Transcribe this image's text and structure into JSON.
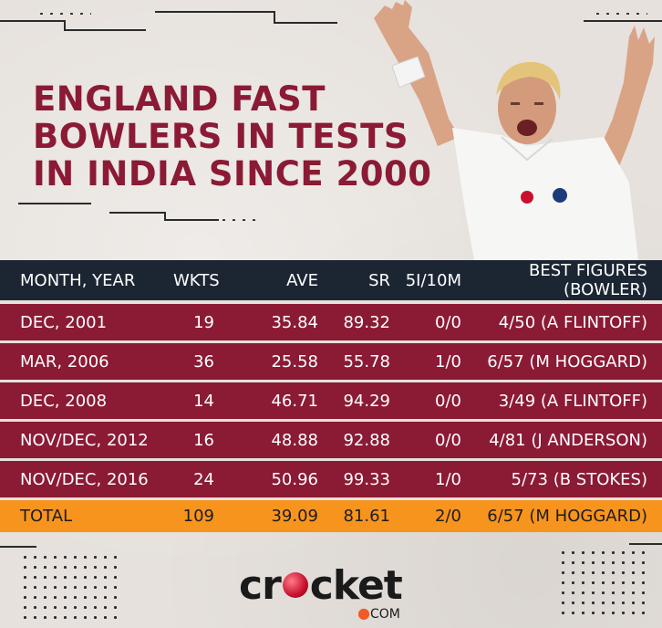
{
  "title": {
    "line1": "ENGLAND FAST",
    "line2": "BOWLERS IN TESTS",
    "line3": "IN INDIA SINCE 2000"
  },
  "table": {
    "headers": [
      "MONTH, YEAR",
      "WKTS",
      "AVE",
      "SR",
      "5I/10M",
      "BEST FIGURES (BOWLER)"
    ],
    "rows": [
      [
        "DEC, 2001",
        "19",
        "35.84",
        "89.32",
        "0/0",
        "4/50 (A FLINTOFF)"
      ],
      [
        "MAR, 2006",
        "36",
        "25.58",
        "55.78",
        "1/0",
        "6/57 (M HOGGARD)"
      ],
      [
        "DEC, 2008",
        "14",
        "46.71",
        "94.29",
        "0/0",
        "3/49 (A FLINTOFF)"
      ],
      [
        "NOV/DEC, 2012",
        "16",
        "48.88",
        "92.88",
        "0/0",
        "4/81 (J ANDERSON)"
      ],
      [
        "NOV/DEC, 2016",
        "24",
        "50.96",
        "99.33",
        "1/0",
        "5/73 (B STOKES)"
      ]
    ],
    "total": [
      "TOTAL",
      "109",
      "39.09",
      "81.61",
      "2/0",
      "6/57 (M HOGGARD)"
    ]
  },
  "logo": {
    "word_start": "cr",
    "word_end": "cket",
    "sub": "COM"
  },
  "colors": {
    "title": "#8b1a35",
    "header_bg": "#1c2633",
    "row_bg": "#8b1a35",
    "total_bg": "#f7941d",
    "background": "#e6e1dc"
  }
}
